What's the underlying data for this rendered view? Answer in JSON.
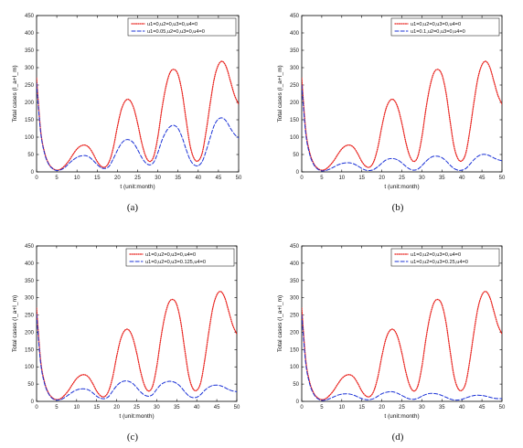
{
  "chart_data": [
    {
      "type": "line",
      "caption": "(a)",
      "xlabel": "t (unit:month)",
      "ylabel": "Total cases (I_a+I_m)",
      "xlim": [
        0,
        50
      ],
      "ylim": [
        0,
        450
      ],
      "xticks": [
        "0",
        "5",
        "10",
        "15",
        "20",
        "25",
        "30",
        "35",
        "40",
        "45",
        "50"
      ],
      "yticks": [
        "0",
        "50",
        "100",
        "150",
        "200",
        "250",
        "300",
        "350",
        "400",
        "450"
      ],
      "legend_position": "top-right",
      "series": [
        {
          "name": "u1=0,u2=0,u3=0,u4=0",
          "color": "#e8211c",
          "style": "dotted",
          "x": [
            0,
            1,
            2,
            3,
            4,
            5,
            6,
            7,
            8,
            9,
            10,
            11,
            12,
            13,
            14,
            15,
            16,
            17,
            18,
            19,
            20,
            21,
            22,
            23,
            24,
            25,
            26,
            27,
            28,
            29,
            30,
            31,
            32,
            33,
            34,
            35,
            36,
            37,
            38,
            39,
            40,
            41,
            42,
            43,
            44,
            45,
            46,
            47,
            48,
            49,
            50
          ],
          "values": [
            270,
            120,
            55,
            24,
            10,
            5,
            8,
            18,
            32,
            50,
            66,
            75,
            77,
            70,
            52,
            30,
            16,
            14,
            30,
            70,
            130,
            180,
            205,
            207,
            185,
            140,
            85,
            45,
            30,
            45,
            100,
            180,
            245,
            285,
            295,
            280,
            230,
            150,
            75,
            38,
            32,
            55,
            120,
            200,
            270,
            308,
            318,
            300,
            260,
            220,
            195
          ]
        },
        {
          "name": "u1=0.05,u2=0,u3=0,u4=0",
          "color": "#1a31d6",
          "style": "dashed",
          "x": [
            0,
            1,
            2,
            3,
            4,
            5,
            6,
            7,
            8,
            9,
            10,
            11,
            12,
            13,
            14,
            15,
            16,
            17,
            18,
            19,
            20,
            21,
            22,
            23,
            24,
            25,
            26,
            27,
            28,
            29,
            30,
            31,
            32,
            33,
            34,
            35,
            36,
            37,
            38,
            39,
            40,
            41,
            42,
            43,
            44,
            45,
            46,
            47,
            48,
            49,
            50
          ],
          "values": [
            255,
            115,
            52,
            22,
            9,
            4,
            6,
            13,
            24,
            34,
            42,
            46,
            47,
            43,
            33,
            21,
            12,
            10,
            17,
            38,
            62,
            82,
            92,
            92,
            83,
            64,
            42,
            26,
            20,
            28,
            55,
            90,
            115,
            130,
            134,
            125,
            100,
            65,
            35,
            20,
            18,
            30,
            62,
            100,
            135,
            152,
            155,
            145,
            125,
            108,
            98
          ]
        }
      ]
    },
    {
      "type": "line",
      "caption": "(b)",
      "xlabel": "t (unit:month)",
      "ylabel": "Total cases (I_a+I_m)",
      "xlim": [
        0,
        50
      ],
      "ylim": [
        0,
        450
      ],
      "xticks": [
        "0",
        "5",
        "10",
        "15",
        "20",
        "25",
        "30",
        "35",
        "40",
        "45",
        "50"
      ],
      "yticks": [
        "0",
        "50",
        "100",
        "150",
        "200",
        "250",
        "300",
        "350",
        "400",
        "450"
      ],
      "legend_position": "top-right",
      "series": [
        {
          "name": "u1=0,u2=0,u3=0,u4=0",
          "color": "#e8211c",
          "style": "dotted",
          "x": [
            0,
            1,
            2,
            3,
            4,
            5,
            6,
            7,
            8,
            9,
            10,
            11,
            12,
            13,
            14,
            15,
            16,
            17,
            18,
            19,
            20,
            21,
            22,
            23,
            24,
            25,
            26,
            27,
            28,
            29,
            30,
            31,
            32,
            33,
            34,
            35,
            36,
            37,
            38,
            39,
            40,
            41,
            42,
            43,
            44,
            45,
            46,
            47,
            48,
            49,
            50
          ],
          "values": [
            270,
            120,
            55,
            24,
            10,
            5,
            8,
            18,
            32,
            50,
            66,
            75,
            77,
            70,
            52,
            30,
            16,
            14,
            30,
            70,
            130,
            180,
            205,
            207,
            185,
            140,
            85,
            45,
            30,
            45,
            100,
            180,
            245,
            285,
            295,
            280,
            230,
            150,
            75,
            38,
            32,
            55,
            120,
            200,
            270,
            308,
            318,
            300,
            260,
            220,
            195
          ]
        },
        {
          "name": "u1=0.1,u2=0,u3=0,u4=0",
          "color": "#1a31d6",
          "style": "dashed",
          "x": [
            0,
            1,
            2,
            3,
            4,
            5,
            6,
            7,
            8,
            9,
            10,
            11,
            12,
            13,
            14,
            15,
            16,
            17,
            18,
            19,
            20,
            21,
            22,
            23,
            24,
            25,
            26,
            27,
            28,
            29,
            30,
            31,
            32,
            33,
            34,
            35,
            36,
            37,
            38,
            39,
            40,
            41,
            42,
            43,
            44,
            45,
            46,
            47,
            48,
            49,
            50
          ],
          "values": [
            250,
            110,
            50,
            21,
            8,
            3,
            4,
            8,
            14,
            20,
            24,
            26,
            26,
            23,
            17,
            10,
            5,
            4,
            7,
            15,
            25,
            34,
            38,
            38,
            34,
            26,
            16,
            8,
            5,
            8,
            18,
            30,
            40,
            45,
            45,
            41,
            32,
            20,
            10,
            5,
            5,
            10,
            22,
            35,
            45,
            50,
            50,
            46,
            40,
            35,
            32
          ]
        }
      ]
    },
    {
      "type": "line",
      "caption": "(c)",
      "xlabel": "t (unit:month)",
      "ylabel": "Total cases (I_a+I_m)",
      "xlim": [
        0,
        50
      ],
      "ylim": [
        0,
        450
      ],
      "xticks": [
        "0",
        "5",
        "10",
        "15",
        "20",
        "25",
        "30",
        "35",
        "40",
        "45",
        "50"
      ],
      "yticks": [
        "0",
        "50",
        "100",
        "150",
        "200",
        "250",
        "300",
        "350",
        "400",
        "450"
      ],
      "legend_position": "top-right",
      "series": [
        {
          "name": "u1=0,u2=0,u3=0,u4=0",
          "color": "#e8211c",
          "style": "dotted",
          "x": [
            0,
            1,
            2,
            3,
            4,
            5,
            6,
            7,
            8,
            9,
            10,
            11,
            12,
            13,
            14,
            15,
            16,
            17,
            18,
            19,
            20,
            21,
            22,
            23,
            24,
            25,
            26,
            27,
            28,
            29,
            30,
            31,
            32,
            33,
            34,
            35,
            36,
            37,
            38,
            39,
            40,
            41,
            42,
            43,
            44,
            45,
            46,
            47,
            48,
            49,
            50
          ],
          "values": [
            270,
            120,
            55,
            24,
            10,
            5,
            8,
            18,
            32,
            50,
            66,
            75,
            77,
            70,
            52,
            30,
            16,
            14,
            30,
            70,
            130,
            180,
            205,
            207,
            185,
            140,
            85,
            45,
            30,
            45,
            100,
            180,
            245,
            285,
            295,
            280,
            230,
            150,
            75,
            38,
            32,
            55,
            120,
            200,
            270,
            308,
            318,
            300,
            260,
            220,
            195
          ]
        },
        {
          "name": "u1=0,u2=0,u3=0.125,u4=0",
          "color": "#1a31d6",
          "style": "dashed",
          "x": [
            0,
            1,
            2,
            3,
            4,
            5,
            6,
            7,
            8,
            9,
            10,
            11,
            12,
            13,
            14,
            15,
            16,
            17,
            18,
            19,
            20,
            21,
            22,
            23,
            24,
            25,
            26,
            27,
            28,
            29,
            30,
            31,
            32,
            33,
            34,
            35,
            36,
            37,
            38,
            39,
            40,
            41,
            42,
            43,
            44,
            45,
            46,
            47,
            48,
            49,
            50
          ],
          "values": [
            252,
            112,
            51,
            22,
            8,
            4,
            5,
            11,
            19,
            27,
            33,
            36,
            36,
            33,
            25,
            15,
            9,
            8,
            14,
            30,
            45,
            55,
            59,
            58,
            52,
            40,
            27,
            18,
            15,
            20,
            35,
            48,
            55,
            58,
            57,
            52,
            42,
            28,
            16,
            11,
            12,
            20,
            32,
            41,
            46,
            47,
            45,
            40,
            34,
            30,
            28
          ]
        }
      ]
    },
    {
      "type": "line",
      "caption": "(d)",
      "xlabel": "t (unit:month)",
      "ylabel": "Total cases (I_a+I_m)",
      "xlim": [
        0,
        50
      ],
      "ylim": [
        0,
        450
      ],
      "xticks": [
        "0",
        "5",
        "10",
        "15",
        "20",
        "25",
        "30",
        "35",
        "40",
        "45",
        "50"
      ],
      "yticks": [
        "0",
        "50",
        "100",
        "150",
        "200",
        "250",
        "300",
        "350",
        "400",
        "450"
      ],
      "legend_position": "top-right",
      "series": [
        {
          "name": "u1=0,u2=0,u3=0,u4=0",
          "color": "#e8211c",
          "style": "dotted",
          "x": [
            0,
            1,
            2,
            3,
            4,
            5,
            6,
            7,
            8,
            9,
            10,
            11,
            12,
            13,
            14,
            15,
            16,
            17,
            18,
            19,
            20,
            21,
            22,
            23,
            24,
            25,
            26,
            27,
            28,
            29,
            30,
            31,
            32,
            33,
            34,
            35,
            36,
            37,
            38,
            39,
            40,
            41,
            42,
            43,
            44,
            45,
            46,
            47,
            48,
            49,
            50
          ],
          "values": [
            270,
            120,
            55,
            24,
            10,
            5,
            8,
            18,
            32,
            50,
            66,
            75,
            77,
            70,
            52,
            30,
            16,
            14,
            30,
            70,
            130,
            180,
            205,
            207,
            185,
            140,
            85,
            45,
            30,
            45,
            100,
            180,
            245,
            285,
            295,
            280,
            230,
            150,
            75,
            38,
            32,
            55,
            120,
            200,
            270,
            308,
            318,
            300,
            260,
            220,
            195
          ]
        },
        {
          "name": "u1=0,u2=0,u3=0.25,u4=0",
          "color": "#1a31d6",
          "style": "dashed",
          "x": [
            0,
            1,
            2,
            3,
            4,
            5,
            6,
            7,
            8,
            9,
            10,
            11,
            12,
            13,
            14,
            15,
            16,
            17,
            18,
            19,
            20,
            21,
            22,
            23,
            24,
            25,
            26,
            27,
            28,
            29,
            30,
            31,
            32,
            33,
            34,
            35,
            36,
            37,
            38,
            39,
            40,
            41,
            42,
            43,
            44,
            45,
            46,
            47,
            48,
            49,
            50
          ],
          "values": [
            250,
            110,
            50,
            21,
            8,
            3,
            4,
            8,
            13,
            18,
            21,
            22,
            21,
            18,
            13,
            8,
            5,
            5,
            8,
            15,
            22,
            26,
            28,
            27,
            23,
            17,
            11,
            7,
            6,
            9,
            15,
            20,
            23,
            23,
            21,
            17,
            12,
            7,
            4,
            4,
            6,
            10,
            14,
            17,
            18,
            17,
            15,
            12,
            9,
            8,
            8
          ]
        }
      ]
    }
  ]
}
